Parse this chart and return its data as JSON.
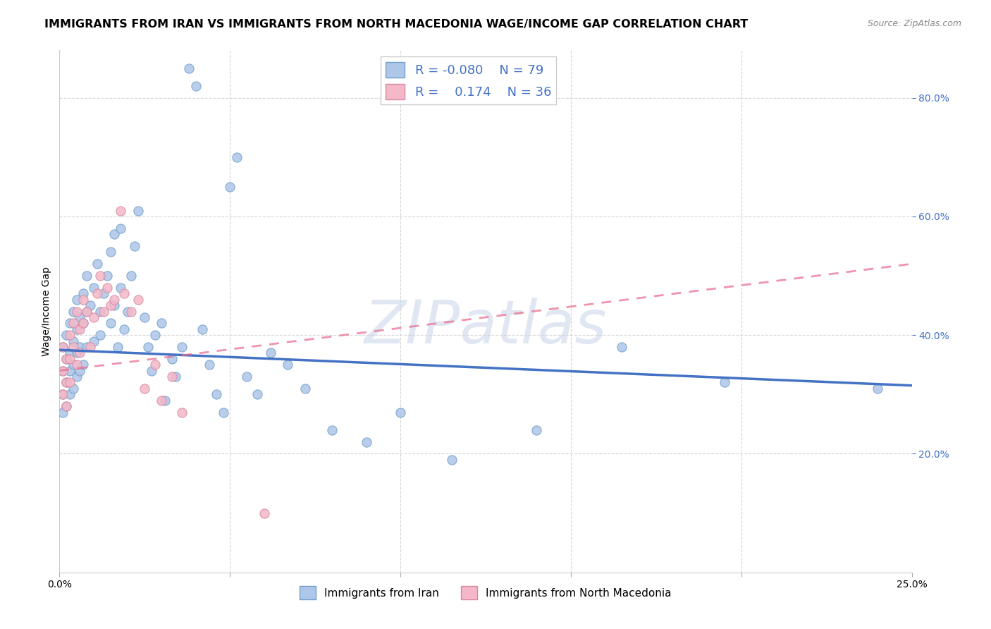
{
  "title": "IMMIGRANTS FROM IRAN VS IMMIGRANTS FROM NORTH MACEDONIA WAGE/INCOME GAP CORRELATION CHART",
  "source": "Source: ZipAtlas.com",
  "ylabel": "Wage/Income Gap",
  "y_ticks": [
    0.2,
    0.4,
    0.6,
    0.8
  ],
  "y_tick_labels": [
    "20.0%",
    "40.0%",
    "60.0%",
    "80.0%"
  ],
  "xlim": [
    0.0,
    0.25
  ],
  "ylim": [
    0.0,
    0.88
  ],
  "iran_color": "#aec6e8",
  "iran_edge_color": "#6fa0cc",
  "iran_line_color": "#4472C4",
  "macedonia_color": "#f4b8c8",
  "macedonia_edge_color": "#d888a0",
  "macedonia_line_color": "#e87090",
  "R_iran": -0.08,
  "N_iran": 79,
  "R_macedonia": 0.174,
  "N_macedonia": 36,
  "legend_label_iran": "Immigrants from Iran",
  "legend_label_macedonia": "Immigrants from North Macedonia",
  "watermark": "ZIPatlas",
  "marker_size": 90,
  "title_fontsize": 11.5,
  "axis_label_fontsize": 10,
  "tick_fontsize": 10,
  "iran_trend_x0": 0.0,
  "iran_trend_y0": 0.375,
  "iran_trend_x1": 0.25,
  "iran_trend_y1": 0.315,
  "mac_trend_x0": 0.0,
  "mac_trend_y0": 0.34,
  "mac_trend_x1": 0.25,
  "mac_trend_y1": 0.52,
  "iran_points_x": [
    0.001,
    0.001,
    0.001,
    0.001,
    0.002,
    0.002,
    0.002,
    0.002,
    0.003,
    0.003,
    0.003,
    0.003,
    0.004,
    0.004,
    0.004,
    0.004,
    0.005,
    0.005,
    0.005,
    0.005,
    0.006,
    0.006,
    0.006,
    0.007,
    0.007,
    0.007,
    0.008,
    0.008,
    0.008,
    0.009,
    0.01,
    0.01,
    0.011,
    0.012,
    0.012,
    0.013,
    0.014,
    0.015,
    0.015,
    0.016,
    0.016,
    0.017,
    0.018,
    0.018,
    0.019,
    0.02,
    0.021,
    0.022,
    0.023,
    0.025,
    0.026,
    0.027,
    0.028,
    0.03,
    0.031,
    0.033,
    0.034,
    0.036,
    0.038,
    0.04,
    0.042,
    0.044,
    0.046,
    0.048,
    0.05,
    0.052,
    0.055,
    0.058,
    0.062,
    0.067,
    0.072,
    0.08,
    0.09,
    0.1,
    0.115,
    0.14,
    0.165,
    0.195,
    0.24
  ],
  "iran_points_y": [
    0.38,
    0.34,
    0.3,
    0.27,
    0.4,
    0.36,
    0.32,
    0.28,
    0.42,
    0.37,
    0.34,
    0.3,
    0.44,
    0.39,
    0.35,
    0.31,
    0.46,
    0.41,
    0.37,
    0.33,
    0.43,
    0.38,
    0.34,
    0.47,
    0.42,
    0.35,
    0.5,
    0.44,
    0.38,
    0.45,
    0.48,
    0.39,
    0.52,
    0.44,
    0.4,
    0.47,
    0.5,
    0.54,
    0.42,
    0.57,
    0.45,
    0.38,
    0.58,
    0.48,
    0.41,
    0.44,
    0.5,
    0.55,
    0.61,
    0.43,
    0.38,
    0.34,
    0.4,
    0.42,
    0.29,
    0.36,
    0.33,
    0.38,
    0.85,
    0.82,
    0.41,
    0.35,
    0.3,
    0.27,
    0.65,
    0.7,
    0.33,
    0.3,
    0.37,
    0.35,
    0.31,
    0.24,
    0.22,
    0.27,
    0.19,
    0.24,
    0.38,
    0.32,
    0.31
  ],
  "mac_points_x": [
    0.001,
    0.001,
    0.001,
    0.002,
    0.002,
    0.002,
    0.003,
    0.003,
    0.003,
    0.004,
    0.004,
    0.005,
    0.005,
    0.006,
    0.006,
    0.007,
    0.007,
    0.008,
    0.009,
    0.01,
    0.011,
    0.012,
    0.013,
    0.014,
    0.015,
    0.016,
    0.018,
    0.019,
    0.021,
    0.023,
    0.025,
    0.028,
    0.03,
    0.033,
    0.036,
    0.06
  ],
  "mac_points_y": [
    0.38,
    0.34,
    0.3,
    0.36,
    0.32,
    0.28,
    0.4,
    0.36,
    0.32,
    0.42,
    0.38,
    0.44,
    0.35,
    0.41,
    0.37,
    0.46,
    0.42,
    0.44,
    0.38,
    0.43,
    0.47,
    0.5,
    0.44,
    0.48,
    0.45,
    0.46,
    0.61,
    0.47,
    0.44,
    0.46,
    0.31,
    0.35,
    0.29,
    0.33,
    0.27,
    0.1
  ]
}
